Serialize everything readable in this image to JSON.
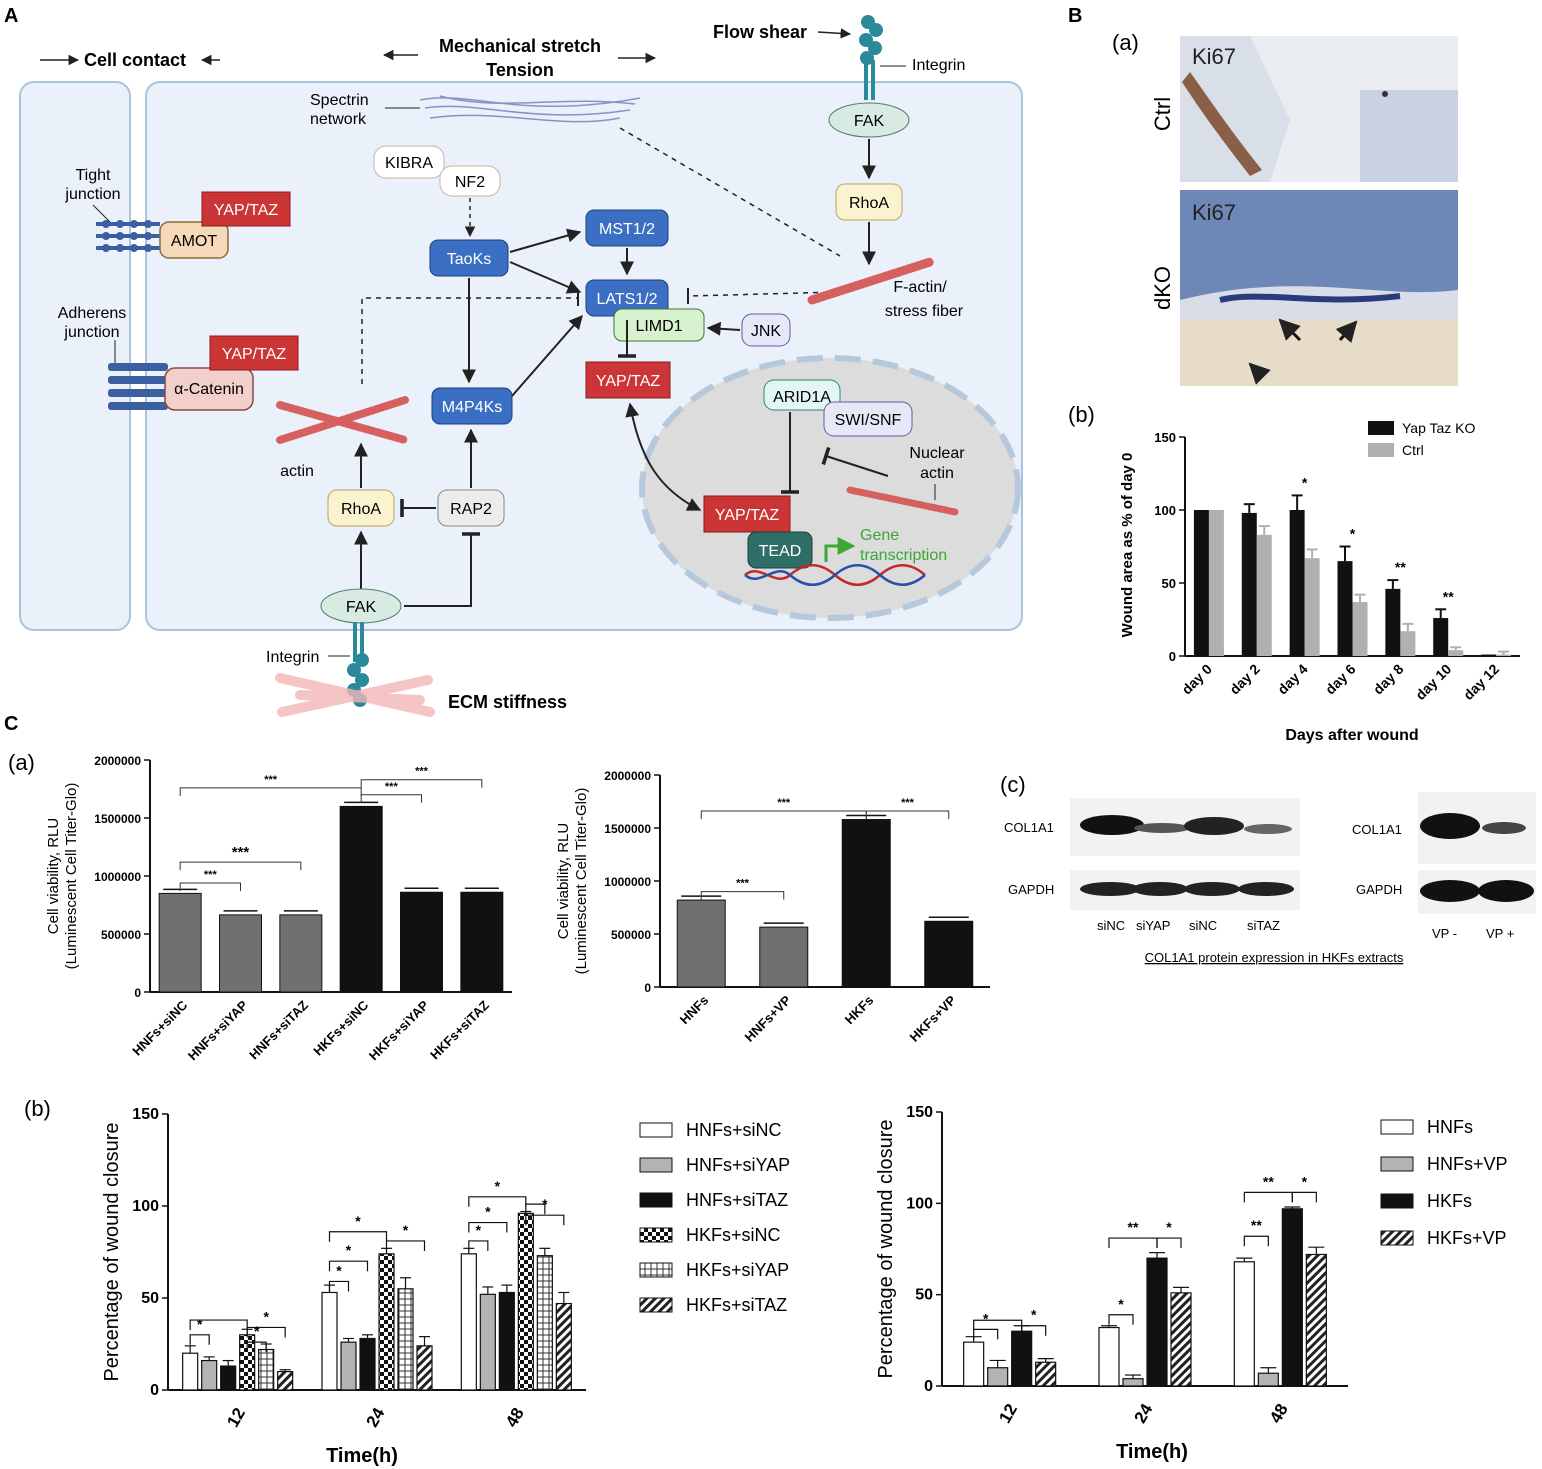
{
  "panelA": {
    "letter": "A",
    "cell_contact": "Cell contact",
    "mech_stretch": "Mechanical stretch",
    "tension": "Tension",
    "flow_shear": "Flow shear",
    "integrin_top": "Integrin",
    "integrin_bottom": "Integrin",
    "spectrin": "Spectrin",
    "network": "network",
    "tight": "Tight",
    "junction1": "junction",
    "adherens": "Adherens",
    "junction2": "junction",
    "yaptaz": "YAP/TAZ",
    "amot": "AMOT",
    "alpha_catenin": "α-Catenin",
    "kibra": "KIBRA",
    "nf2": "NF2",
    "taoks": "TaoKs",
    "mst": "MST1/2",
    "lats": "LATS1/2",
    "limd1": "LIMD1",
    "jnk": "JNK",
    "m4p4ks": "M4P4Ks",
    "rhoa": "RhoA",
    "rap2": "RAP2",
    "fak": "FAK",
    "actin": "actin",
    "factin1": "F-actin/",
    "factin2": "stress fiber",
    "arid1a": "ARID1A",
    "swisnf": "SWI/SNF",
    "nuclear1": "Nuclear",
    "nuclear2": "actin",
    "tead": "TEAD",
    "gene1": "Gene",
    "gene2": "transcription",
    "ecm": "ECM stiffness"
  },
  "panelB": {
    "letter": "B",
    "sub_a": "(a)",
    "sub_b": "(b)",
    "ki67_top": "Ki67",
    "ki67_bottom": "Ki67",
    "ctrl_side": "Ctrl",
    "dko_side": "dKO"
  },
  "panelC": {
    "letter": "C",
    "sub_a": "(a)",
    "sub_b": "(b)",
    "sub_c": "(c)",
    "blot_left_col1": "COL1A1",
    "blot_left_gapdh": "GAPDH",
    "blot_right_col1": "COL1A1",
    "blot_right_gapdh": "GAPDH",
    "blot_left_lanes": [
      "siNC",
      "siYAP",
      "siNC",
      "siTAZ"
    ],
    "blot_right_lanes": [
      "VP -",
      "VP +"
    ],
    "blot_caption": "COL1A1 protein expression in HKFs extracts"
  },
  "colors": {
    "cell_bg": "#eaf1fa",
    "cell_border": "#a9c3dd",
    "blue_node": "#3a6fc4",
    "red_node": "#cc3535",
    "teal": "#2f6e66",
    "green_text": "#3aa832"
  },
  "chart_data": [
    {
      "type": "bar",
      "title": "",
      "xlabel": "Days after wound",
      "ylabel": "Wound area as % of day 0",
      "ylim": [
        0,
        150
      ],
      "yticks": [
        0,
        50,
        100,
        150
      ],
      "categories": [
        "day 0",
        "day 2",
        "day 4",
        "day 6",
        "day 8",
        "day 10",
        "day 12"
      ],
      "series": [
        {
          "name": "Yap Taz KO",
          "color": "#111111",
          "values": [
            100,
            98,
            100,
            65,
            46,
            26,
            1
          ],
          "errors": [
            0,
            6,
            10,
            10,
            6,
            6,
            0
          ]
        },
        {
          "name": "Ctrl",
          "color": "#b0b0b0",
          "values": [
            100,
            83,
            67,
            37,
            17,
            4,
            1
          ],
          "errors": [
            0,
            6,
            6,
            5,
            5,
            2,
            2
          ]
        }
      ],
      "significance": [
        "",
        "",
        "*",
        "*",
        "**",
        "**",
        ""
      ],
      "legend": "top-right"
    },
    {
      "type": "bar",
      "title": "",
      "xlabel": "",
      "ylabel": "Cell viability, RLU",
      "ylabel2": "(Luminescent Cell Titer-Glo)",
      "ylim": [
        0,
        2000000
      ],
      "yticks": [
        "0",
        "500000",
        "1000000",
        "1500000",
        "2000000"
      ],
      "categories": [
        "HNFs+siNC",
        "HNFs+siYAP",
        "HNFs+siTAZ",
        "HKFs+siNC",
        "HKFs+siYAP",
        "HKFs+siTAZ"
      ],
      "values": [
        850000,
        665000,
        665000,
        1600000,
        860000,
        860000
      ],
      "colors": [
        "#707070",
        "#707070",
        "#707070",
        "#111111",
        "#111111",
        "#111111"
      ],
      "significance": [
        "***",
        "***",
        "***",
        "***",
        "***",
        "***"
      ]
    },
    {
      "type": "bar",
      "title": "",
      "xlabel": "",
      "ylabel": "Cell viability, RLU",
      "ylabel2": "(Luminescent Cell Titer-Glo)",
      "ylim": [
        0,
        2000000
      ],
      "yticks": [
        "0",
        "500000",
        "1000000",
        "1500000",
        "2000000"
      ],
      "categories": [
        "HNFs",
        "HNFs+VP",
        "HKFs",
        "HKFs+VP"
      ],
      "values": [
        820000,
        565000,
        1580000,
        620000
      ],
      "colors": [
        "#707070",
        "#707070",
        "#111111",
        "#111111"
      ],
      "significance": [
        "***",
        "***",
        "***"
      ]
    },
    {
      "type": "bar",
      "title": "",
      "xlabel": "Time(h)",
      "ylabel": "Percentage of wound closure",
      "ylim": [
        0,
        150
      ],
      "yticks": [
        0,
        50,
        100,
        150
      ],
      "categories": [
        "12",
        "24",
        "48"
      ],
      "series": [
        {
          "name": "HNFs+siNC",
          "pattern": "white",
          "values": [
            20,
            53,
            74
          ],
          "errors": [
            4,
            4,
            3
          ]
        },
        {
          "name": "HNFs+siYAP",
          "pattern": "gray",
          "values": [
            16,
            26,
            52
          ],
          "errors": [
            2,
            2,
            4
          ]
        },
        {
          "name": "HNFs+siTAZ",
          "pattern": "black",
          "values": [
            13,
            28,
            53
          ],
          "errors": [
            3,
            2,
            4
          ]
        },
        {
          "name": "HKFs+siNC",
          "pattern": "checker",
          "values": [
            30,
            74,
            96
          ],
          "errors": [
            3,
            3,
            1
          ]
        },
        {
          "name": "HKFs+siYAP",
          "pattern": "grid",
          "values": [
            22,
            55,
            73
          ],
          "errors": [
            3,
            6,
            4
          ]
        },
        {
          "name": "HKFs+siTAZ",
          "pattern": "diag",
          "values": [
            10,
            24,
            47
          ],
          "errors": [
            1,
            5,
            6
          ]
        }
      ],
      "legend": "right"
    },
    {
      "type": "bar",
      "title": "",
      "xlabel": "Time(h)",
      "ylabel": "Percentage of wound closure",
      "ylim": [
        0,
        150
      ],
      "yticks": [
        0,
        50,
        100,
        150
      ],
      "categories": [
        "12",
        "24",
        "48"
      ],
      "series": [
        {
          "name": "HNFs",
          "pattern": "white",
          "values": [
            24,
            32,
            68
          ],
          "errors": [
            3,
            1,
            2
          ]
        },
        {
          "name": "HNFs+VP",
          "pattern": "gray",
          "values": [
            10,
            4,
            7
          ],
          "errors": [
            4,
            2,
            3
          ]
        },
        {
          "name": "HKFs",
          "pattern": "black",
          "values": [
            30,
            70,
            97
          ],
          "errors": [
            3,
            3,
            1
          ]
        },
        {
          "name": "HKFs+VP",
          "pattern": "diag",
          "values": [
            13,
            51,
            72
          ],
          "errors": [
            2,
            3,
            4
          ]
        }
      ],
      "legend": "right"
    }
  ]
}
